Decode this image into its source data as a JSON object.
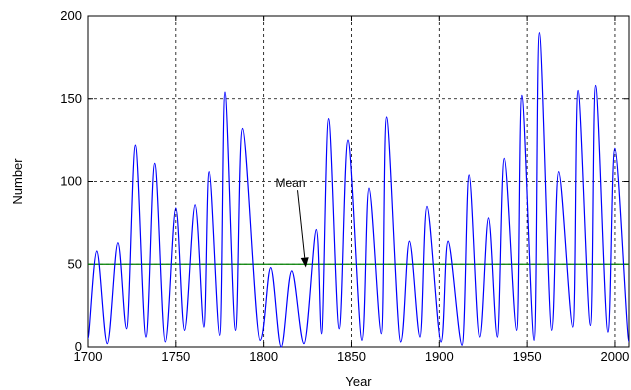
{
  "chart_data": {
    "type": "line",
    "title": "",
    "xlabel": "Year",
    "ylabel": "Number",
    "xlim": [
      1700,
      2008
    ],
    "ylim": [
      0,
      200
    ],
    "xticks": [
      1700,
      1750,
      1800,
      1850,
      1900,
      1950,
      2000
    ],
    "xtick_labels": [
      "1700",
      "1750",
      "1800",
      "1850",
      "1900",
      "1950",
      "2000"
    ],
    "yticks": [
      0,
      50,
      100,
      150,
      200
    ],
    "ytick_labels": [
      "0",
      "50",
      "100",
      "150",
      "200"
    ],
    "grid": true,
    "grid_style": "dashed",
    "colors": {
      "series": "#0000ff",
      "mean": "#008000",
      "grid": "#000000",
      "annotation": "#000000"
    },
    "series": [
      {
        "x": [
          1700,
          1705,
          1711,
          1717,
          1722,
          1727,
          1733,
          1738,
          1744,
          1750,
          1755,
          1761,
          1766,
          1769,
          1775,
          1778,
          1784,
          1788,
          1798,
          1804,
          1810,
          1816,
          1823,
          1830,
          1833,
          1837,
          1843,
          1848,
          1856,
          1860,
          1867,
          1870,
          1878,
          1883,
          1889,
          1893,
          1901,
          1905,
          1913,
          1917,
          1923,
          1928,
          1933,
          1937,
          1944,
          1947,
          1954,
          1957,
          1964,
          1968,
          1976,
          1979,
          1986,
          1989,
          1996,
          2000,
          2008
        ],
        "y": [
          5,
          58,
          2,
          63,
          11,
          122,
          6,
          111,
          3,
          84,
          10,
          86,
          12,
          106,
          7,
          154,
          10,
          132,
          4,
          48,
          0,
          46,
          2,
          71,
          8,
          138,
          11,
          125,
          4,
          96,
          8,
          139,
          3,
          64,
          6,
          85,
          3,
          64,
          1,
          104,
          6,
          78,
          6,
          114,
          10,
          152,
          4,
          190,
          10,
          106,
          12,
          155,
          13,
          158,
          9,
          120,
          3
        ]
      }
    ],
    "mean_line": {
      "value": 50
    },
    "annotations": [
      {
        "text": "Mean",
        "x": 1817,
        "y": 99,
        "arrow_to": [
          1824,
          48
        ]
      }
    ]
  }
}
